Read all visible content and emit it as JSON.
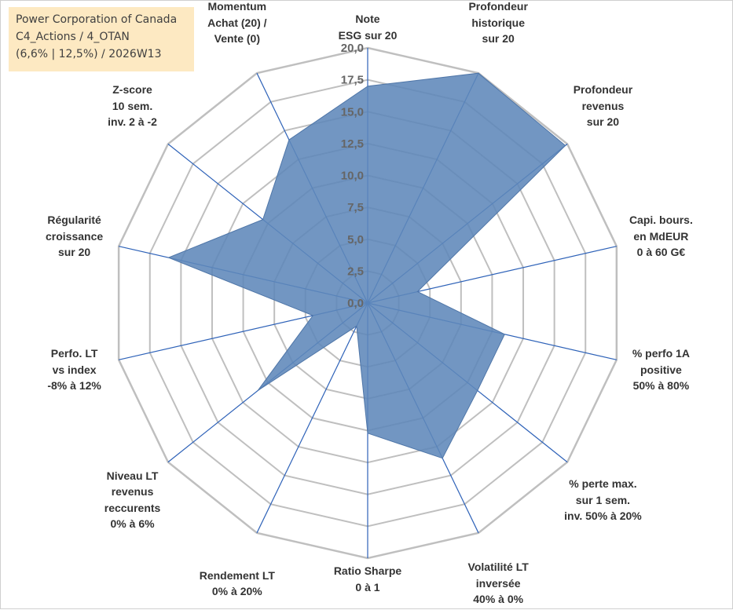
{
  "info_box": {
    "line1": "Power Corporation of Canada",
    "line2": "C4_Actions / 4_OTAN",
    "line3": "(6,6% | 12,5%) / 2026W13"
  },
  "colors": {
    "fill": "#5f88ba",
    "fill_opacity": "0.88",
    "stroke": "#4f76a8",
    "spoke": "#2e62b8",
    "ring": "#bfbfbf"
  },
  "chart_data": {
    "type": "radar",
    "title": "",
    "rmin": 0,
    "rmax": 20,
    "tick_step": 2.5,
    "tick_labels": [
      "0,0",
      "2,5",
      "5,0",
      "7,5",
      "10,0",
      "12,5",
      "15,0",
      "17,5",
      "20,0"
    ],
    "axes": [
      {
        "label": [
          "Note",
          "ESG sur 20"
        ],
        "value": 17.0
      },
      {
        "label": [
          "Profondeur",
          "historique",
          "sur 20"
        ],
        "value": 20.0
      },
      {
        "label": [
          "Profondeur",
          "revenus",
          "sur 20"
        ],
        "value": 19.8
      },
      {
        "label": [
          "Capi. bours.",
          "en MdEUR",
          "0 à 60 G€"
        ],
        "value": 4.0
      },
      {
        "label": [
          "% perfo 1A",
          "positive",
          "50% à 80%"
        ],
        "value": 11.0
      },
      {
        "label": [
          "% perte max.",
          "sur 1 sem.",
          "inv. 50% à 20%"
        ],
        "value": 11.0
      },
      {
        "label": [
          "Volatilité LT",
          "inversée",
          "40% à 0%"
        ],
        "value": 13.5
      },
      {
        "label": [
          "Ratio Sharpe",
          "0 à 1"
        ],
        "value": 10.2
      },
      {
        "label": [
          "Rendement LT",
          "0% à 20%"
        ],
        "value": 2.0
      },
      {
        "label": [
          "Niveau LT",
          "revenus",
          "reccurents",
          "0% à 6%"
        ],
        "value": 11.0
      },
      {
        "label": [
          "Perfo. LT",
          "vs index",
          "-8% à 12%"
        ],
        "value": 4.4
      },
      {
        "label": [
          "Régularité",
          "croissance",
          "sur 20"
        ],
        "value": 16.0
      },
      {
        "label": [
          "Z-score",
          "10 sem.",
          "inv. 2 à -2"
        ],
        "value": 10.5
      },
      {
        "label": [
          "Momentum",
          "Achat (20) /",
          "Vente (0)"
        ],
        "value": 14.2
      }
    ]
  }
}
